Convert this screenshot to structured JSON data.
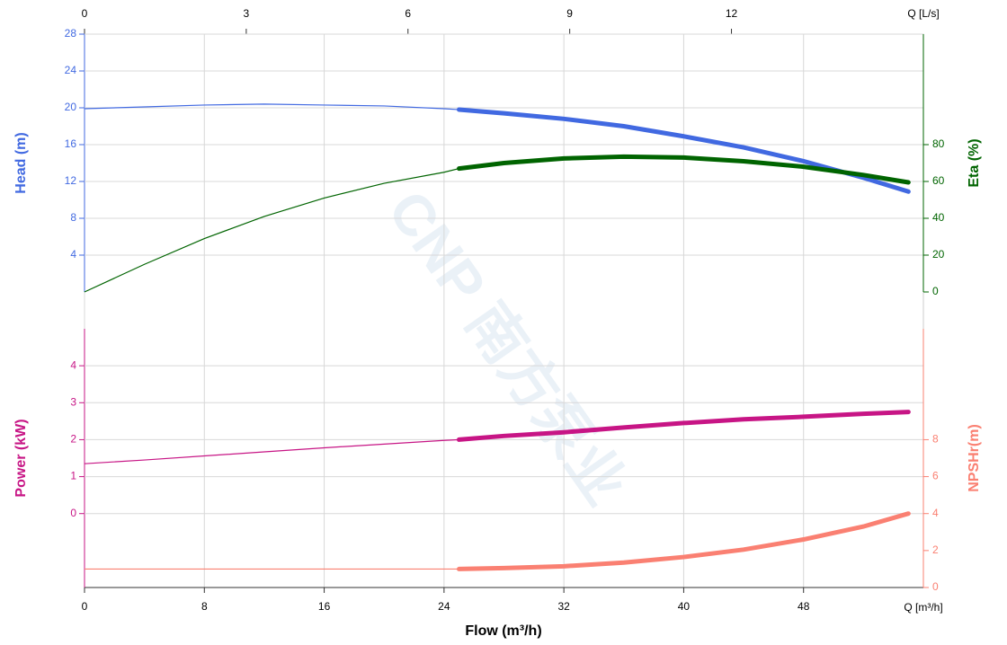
{
  "chart_data": {
    "type": "line",
    "watermark": "CNP 南方泵业",
    "x_label": "Flow (m³/h)",
    "x_unit_label": "Q [m³/h]",
    "xlim": [
      0,
      56
    ],
    "xticks": [
      0,
      8,
      16,
      24,
      32,
      40,
      48
    ],
    "x2_unit_label": "Q [L/s]",
    "x2lim": [
      0,
      15.56
    ],
    "x2ticks": [
      0,
      3,
      6,
      9,
      12
    ],
    "duty_from": 25,
    "grid": true,
    "axes": {
      "head": {
        "label": "Head (m)",
        "color": "#4169e1",
        "side": "left",
        "panel": "upper",
        "ylim": [
          0,
          28
        ],
        "yticks": [
          4,
          8,
          12,
          16,
          20,
          24,
          28
        ]
      },
      "eta": {
        "label": "Eta (%)",
        "color": "#006400",
        "side": "right",
        "panel": "upper",
        "ylim": [
          0,
          140
        ],
        "yticks": [
          0,
          20,
          40,
          60,
          80
        ]
      },
      "power": {
        "label": "Power (kW)",
        "color": "#c71585",
        "side": "left",
        "panel": "lower",
        "ylim": [
          -2,
          5
        ],
        "yticks": [
          0,
          1,
          2,
          3,
          4
        ]
      },
      "npsh": {
        "label": "NPSHr(m)",
        "color": "#fa8072",
        "side": "right",
        "panel": "lower",
        "ylim": [
          0,
          14
        ],
        "yticks": [
          0,
          2,
          4,
          6,
          8
        ]
      }
    },
    "x": [
      0,
      4,
      8,
      12,
      16,
      20,
      24,
      25,
      28,
      32,
      36,
      40,
      44,
      48,
      52,
      55
    ],
    "series": [
      {
        "axis": "head",
        "color": "#4169e1",
        "values": [
          19.9,
          20.1,
          20.3,
          20.4,
          20.3,
          20.2,
          19.9,
          19.8,
          19.4,
          18.8,
          18.0,
          16.9,
          15.7,
          14.2,
          12.4,
          10.9
        ]
      },
      {
        "axis": "eta",
        "color": "#006400",
        "values": [
          0,
          15,
          29,
          41,
          51,
          59,
          65,
          67,
          70,
          72.5,
          73.5,
          73,
          71,
          68,
          63.5,
          59.5
        ]
      },
      {
        "axis": "power",
        "color": "#c71585",
        "values": [
          1.35,
          1.45,
          1.56,
          1.67,
          1.78,
          1.88,
          1.98,
          2.0,
          2.1,
          2.2,
          2.33,
          2.45,
          2.55,
          2.62,
          2.7,
          2.75
        ]
      },
      {
        "axis": "npsh",
        "color": "#fa8072",
        "values": [
          1.0,
          1.0,
          1.0,
          1.0,
          1.0,
          1.0,
          1.0,
          1.0,
          1.05,
          1.15,
          1.35,
          1.65,
          2.05,
          2.6,
          3.3,
          4.0
        ]
      }
    ]
  }
}
